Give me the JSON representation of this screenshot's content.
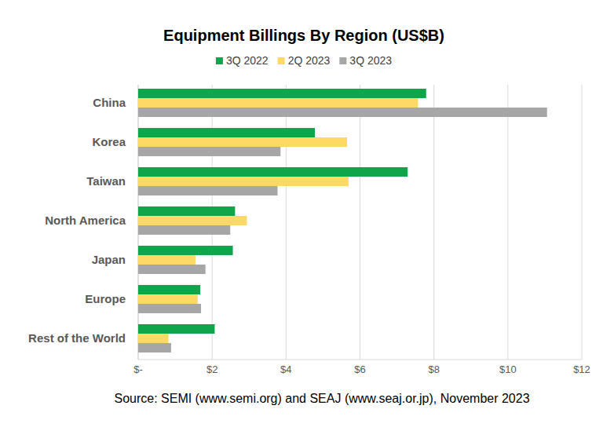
{
  "chart_data": {
    "type": "bar",
    "orientation": "horizontal",
    "title": "Equipment Billings By Region (US$B)",
    "source": "Source: SEMI (www.semi.org) and SEAJ (www.seaj.or.jp), November 2023",
    "categories": [
      "China",
      "Korea",
      "Taiwan",
      "North America",
      "Japan",
      "Europe",
      "Rest of the World"
    ],
    "series": [
      {
        "name": "3Q 2022",
        "color": "#0fa64b",
        "values": [
          7.79,
          4.78,
          7.29,
          2.62,
          2.56,
          1.68,
          2.07
        ]
      },
      {
        "name": "2Q 2023",
        "color": "#ffd966",
        "values": [
          7.57,
          5.65,
          5.69,
          2.94,
          1.55,
          1.61,
          0.82
        ]
      },
      {
        "name": "3Q 2023",
        "color": "#a6a6a6",
        "values": [
          11.06,
          3.85,
          3.77,
          2.49,
          1.82,
          1.7,
          0.89
        ]
      }
    ],
    "xlim": [
      0,
      12
    ],
    "xticks": [
      {
        "value": 0,
        "label": "$-"
      },
      {
        "value": 2,
        "label": "$2"
      },
      {
        "value": 4,
        "label": "$4"
      },
      {
        "value": 6,
        "label": "$6"
      },
      {
        "value": 8,
        "label": "$8"
      },
      {
        "value": 10,
        "label": "$10"
      },
      {
        "value": 12,
        "label": "$12"
      }
    ],
    "grid": true,
    "legend": "top"
  }
}
